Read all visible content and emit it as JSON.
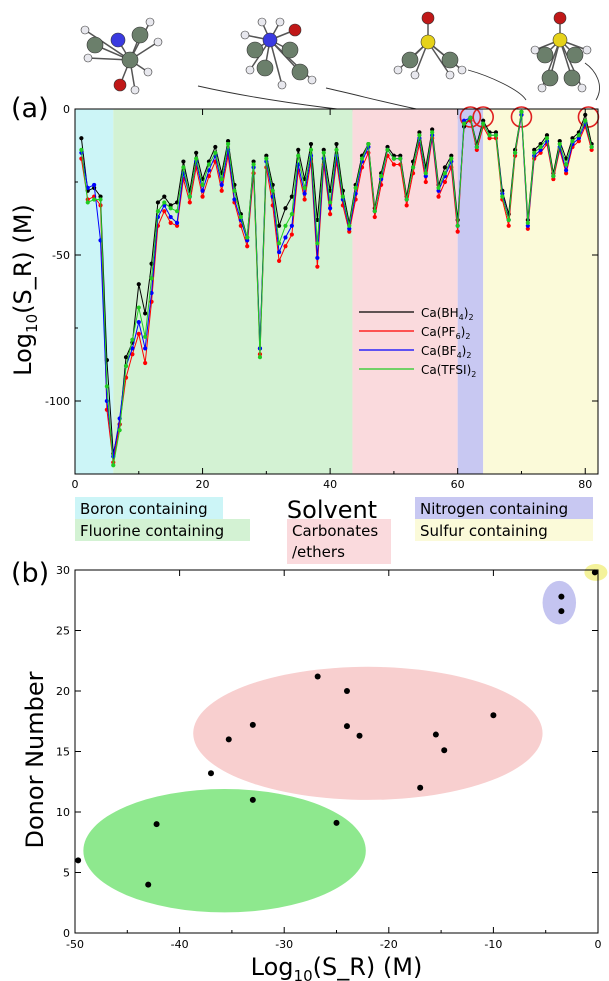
{
  "panels": {
    "a": "(a)",
    "b": "(b)"
  },
  "chart_data": [
    {
      "type": "line",
      "ylabel_main": "Log",
      "ylabel_sub": "10",
      "ylabel_rest": "(S_R) (M)",
      "xlabel": "Solvent",
      "xlim": [
        0,
        82
      ],
      "ylim": [
        -125,
        0
      ],
      "xticks": [
        0,
        20,
        40,
        60,
        80
      ],
      "yticks": [
        0,
        -50,
        -100
      ],
      "legend_placement": "center-right",
      "regions": [
        {
          "label": "Boron containing",
          "x0": 0,
          "x1": 6,
          "color": "#ccf5f7"
        },
        {
          "label": "Fluorine containing",
          "x0": 6,
          "x1": 43.5,
          "color": "#d3f2d3"
        },
        {
          "label": "Carbonates /ethers",
          "label_line1": "Carbonates",
          "label_line2": "/ethers",
          "x0": 43.5,
          "x1": 60,
          "color": "#fadadd"
        },
        {
          "label": "Nitrogen containing",
          "x0": 60,
          "x1": 64,
          "color": "#c8c8f2"
        },
        {
          "label": "Sulfur containing",
          "x0": 64,
          "x1": 82,
          "color": "#fbfad9"
        }
      ],
      "highlighted_x": [
        62,
        64,
        70,
        80.5
      ],
      "x": [
        1,
        2,
        3,
        4,
        5,
        6,
        7,
        8,
        9,
        10,
        11,
        12,
        13,
        14,
        15,
        16,
        17,
        18,
        19,
        20,
        21,
        22,
        23,
        24,
        25,
        26,
        27,
        28,
        29,
        30,
        31,
        32,
        33,
        34,
        35,
        36,
        37,
        38,
        39,
        40,
        41,
        42,
        43,
        44,
        45,
        46,
        47,
        48,
        49,
        50,
        51,
        52,
        53,
        54,
        55,
        56,
        57,
        58,
        59,
        60,
        61,
        62,
        63,
        64,
        65,
        66,
        67,
        68,
        69,
        70,
        71,
        72,
        73,
        74,
        75,
        76,
        77,
        78,
        79,
        80,
        81
      ],
      "series": [
        {
          "name": "Ca(BH4)2",
          "legend_main": "Ca(BH",
          "legend_sub1": "4",
          "legend_mid": ")",
          "legend_sub2": "2",
          "color": "#000000",
          "values": [
            -10,
            -28,
            -27,
            -30,
            -86,
            -118,
            -108,
            -85,
            -80,
            -60,
            -70,
            -53,
            -32,
            -30,
            -33,
            -32,
            -18,
            -28,
            -15,
            -24,
            -18,
            -13,
            -22,
            -11,
            -26,
            -36,
            -44,
            -18,
            -82,
            -16,
            -26,
            -40,
            -34,
            -30,
            -14,
            -24,
            -12,
            -38,
            -14,
            -28,
            -12,
            -28,
            -39,
            -26,
            -16,
            -12,
            -34,
            -22,
            -13,
            -16,
            -16,
            -30,
            -18,
            -8,
            -20,
            -7,
            -26,
            -20,
            -16,
            -38,
            -6,
            -3,
            -12,
            -4,
            -8,
            -8,
            -28,
            -36,
            -14,
            -1,
            -38,
            -14,
            -12,
            -9,
            -22,
            -11,
            -17,
            -10,
            -8,
            -2,
            -12
          ]
        },
        {
          "name": "Ca(PF6)2",
          "legend_main": "Ca(PF",
          "legend_sub1": "6",
          "legend_mid": ")",
          "legend_sub2": "2",
          "color": "#ff0000",
          "values": [
            -17,
            -31,
            -30,
            -33,
            -103,
            -121,
            -108,
            -92,
            -84,
            -77,
            -87,
            -66,
            -40,
            -35,
            -39,
            -40,
            -24,
            -32,
            -20,
            -30,
            -23,
            -18,
            -28,
            -16,
            -32,
            -40,
            -47,
            -22,
            -84,
            -20,
            -33,
            -52,
            -47,
            -43,
            -21,
            -31,
            -18,
            -54,
            -19,
            -36,
            -18,
            -33,
            -42,
            -31,
            -20,
            -15,
            -37,
            -26,
            -16,
            -19,
            -19,
            -33,
            -22,
            -12,
            -25,
            -10,
            -30,
            -25,
            -20,
            -42,
            -5,
            -4,
            -14,
            -6,
            -10,
            -10,
            -31,
            -40,
            -16,
            -2,
            -41,
            -17,
            -15,
            -12,
            -24,
            -14,
            -22,
            -13,
            -11,
            -6,
            -14
          ]
        },
        {
          "name": "Ca(BF4)2",
          "legend_main": "Ca(BF",
          "legend_sub1": "4",
          "legend_mid": ")",
          "legend_sub2": "2",
          "color": "#0000ff",
          "values": [
            -15,
            -27,
            -26,
            -45,
            -100,
            -119,
            -106,
            -88,
            -82,
            -73,
            -82,
            -63,
            -37,
            -33,
            -37,
            -39,
            -22,
            -30,
            -18,
            -28,
            -21,
            -16,
            -26,
            -14,
            -31,
            -38,
            -45,
            -20,
            -82,
            -18,
            -30,
            -49,
            -44,
            -40,
            -19,
            -29,
            -16,
            -51,
            -17,
            -34,
            -16,
            -31,
            -41,
            -29,
            -18,
            -13,
            -35,
            -24,
            -14,
            -17,
            -17,
            -31,
            -20,
            -10,
            -23,
            -9,
            -28,
            -23,
            -18,
            -40,
            -4,
            -3,
            -13,
            -5,
            -9,
            -9,
            -29,
            -38,
            -15,
            -2,
            -40,
            -16,
            -14,
            -11,
            -23,
            -13,
            -21,
            -12,
            -10,
            -5,
            -13
          ]
        },
        {
          "name": "Ca(TFSI)2",
          "legend_main": "Ca(TFSI",
          "legend_sub1": "",
          "legend_mid": ")",
          "legend_sub2": "2",
          "color": "#22cc22",
          "values": [
            -14,
            -32,
            -31,
            -31,
            -95,
            -122,
            -110,
            -88,
            -79,
            -68,
            -78,
            -58,
            -35,
            -32,
            -34,
            -35,
            -20,
            -30,
            -17,
            -26,
            -19,
            -15,
            -24,
            -12,
            -28,
            -37,
            -44,
            -19,
            -85,
            -17,
            -28,
            -46,
            -40,
            -36,
            -16,
            -27,
            -14,
            -46,
            -15,
            -32,
            -14,
            -30,
            -40,
            -27,
            -17,
            -12,
            -35,
            -23,
            -14,
            -17,
            -17,
            -31,
            -20,
            -9,
            -22,
            -8,
            -27,
            -22,
            -17,
            -40,
            -5,
            -3,
            -13,
            -5,
            -9,
            -9,
            -30,
            -38,
            -15,
            -1,
            -39,
            -15,
            -13,
            -10,
            -23,
            -12,
            -19,
            -11,
            -9,
            -4,
            -13
          ]
        }
      ]
    },
    {
      "type": "scatter",
      "xlabel_main": "Log",
      "xlabel_sub": "10",
      "xlabel_rest": "(S_R) (M)",
      "ylabel": "Donor Number",
      "xlim": [
        -50,
        0
      ],
      "ylim": [
        0,
        30
      ],
      "xticks": [
        -50,
        -40,
        -30,
        -20,
        -10,
        0
      ],
      "yticks": [
        0,
        5,
        10,
        15,
        20,
        25,
        30
      ],
      "points": [
        {
          "x": -49.7,
          "y": 6.0
        },
        {
          "x": -43.0,
          "y": 4.0
        },
        {
          "x": -42.2,
          "y": 9.0
        },
        {
          "x": -33.0,
          "y": 11.0
        },
        {
          "x": -25.0,
          "y": 9.1
        },
        {
          "x": -37.0,
          "y": 13.2
        },
        {
          "x": -35.3,
          "y": 16.0
        },
        {
          "x": -33.0,
          "y": 17.2
        },
        {
          "x": -26.8,
          "y": 21.2
        },
        {
          "x": -24.0,
          "y": 20.0
        },
        {
          "x": -24.0,
          "y": 17.1
        },
        {
          "x": -22.8,
          "y": 16.3
        },
        {
          "x": -17.0,
          "y": 12.0
        },
        {
          "x": -15.5,
          "y": 16.4
        },
        {
          "x": -14.7,
          "y": 15.1
        },
        {
          "x": -10.0,
          "y": 18.0
        },
        {
          "x": -3.5,
          "y": 27.8
        },
        {
          "x": -3.5,
          "y": 26.6
        },
        {
          "x": -0.3,
          "y": 29.8
        }
      ],
      "groups": [
        {
          "cx": -35.7,
          "cy": 6.8,
          "rx": 13.5,
          "ry": 5.1,
          "color": "#8ee88e"
        },
        {
          "cx": -22.0,
          "cy": 16.5,
          "rx": 16.7,
          "ry": 5.5,
          "color": "#f8cfcf"
        },
        {
          "cx": -3.7,
          "cy": 27.3,
          "rx": 1.6,
          "ry": 1.8,
          "color": "#c4c4f0"
        },
        {
          "cx": -0.2,
          "cy": 29.8,
          "rx": 1.1,
          "ry": 0.7,
          "color": "#f4f29a"
        }
      ]
    }
  ]
}
